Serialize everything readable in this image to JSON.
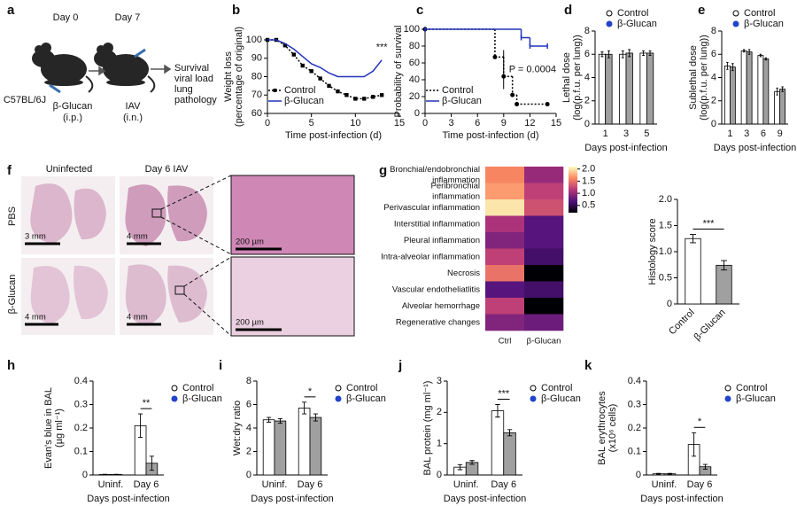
{
  "schematic": {
    "panel": "a",
    "timepoints": [
      "Day 0",
      "Day 7"
    ],
    "strain": "C57BL/6J",
    "treatment": [
      "β-Glucan",
      "(i.p.)"
    ],
    "infection": [
      "IAV",
      "(i.n.)"
    ],
    "readouts": [
      "Survival",
      "viral load",
      "lung",
      "pathology"
    ]
  },
  "histology": {
    "panel": "f",
    "columns": [
      "Uninfected",
      "Day 6 IAV"
    ],
    "rows": [
      "PBS",
      "β-Glucan"
    ],
    "scale_bars": [
      "3 mm",
      "4 mm",
      "4 mm",
      "4 mm"
    ],
    "zoom_scale_bars": [
      "200 µm",
      "200 µm"
    ]
  },
  "chart_data": [
    {
      "panel": "b",
      "type": "line",
      "xlabel": "Time post-infection (d)",
      "ylabel": [
        "Weight loss",
        "(percentage of original)"
      ],
      "x": [
        0,
        1,
        2,
        3,
        4,
        5,
        6,
        7,
        8,
        9,
        10,
        11,
        12,
        13
      ],
      "series": [
        {
          "name": "Control",
          "color": "#000000",
          "linestyle": "dotted",
          "marker": "square",
          "values": [
            100,
            100,
            97,
            92,
            86,
            83,
            79,
            75,
            72,
            70,
            68,
            68,
            69,
            70
          ]
        },
        {
          "name": "β-Glucan",
          "color": "#2233bb",
          "linestyle": "solid",
          "values": [
            100,
            100,
            98,
            95,
            91,
            87,
            85,
            82,
            80,
            80,
            80,
            80,
            83,
            89
          ]
        }
      ],
      "xlim": [
        0,
        15
      ],
      "xticks": [
        0,
        5,
        10,
        15
      ],
      "ylim": [
        60,
        100
      ],
      "yticks": [
        60,
        70,
        80,
        90,
        100
      ],
      "legend": "lower left",
      "annotation": "***"
    },
    {
      "panel": "c",
      "type": "line",
      "drawstyle": "steps-post",
      "xlabel": "Time post-infection (d)",
      "ylabel": [
        "Probability of survival"
      ],
      "series": [
        {
          "name": "Control",
          "color": "#000000",
          "linestyle": "dotted",
          "marker": "circle",
          "x": [
            0,
            8,
            9,
            10,
            10.5,
            14
          ],
          "values": [
            100,
            67,
            44,
            22,
            11,
            11
          ]
        },
        {
          "name": "β-Glucan",
          "color": "#2233bb",
          "linestyle": "solid",
          "marker": "tick",
          "x": [
            0,
            11,
            12,
            14
          ],
          "values": [
            100,
            90,
            80,
            80
          ]
        }
      ],
      "xlim": [
        0,
        15
      ],
      "xticks": [
        0,
        3,
        6,
        9,
        12,
        15
      ],
      "ylim": [
        0,
        100
      ],
      "yticks": [
        0,
        20,
        40,
        60,
        80,
        100
      ],
      "legend": "lower left",
      "annotation": "P = 0.0004"
    },
    {
      "panel": "d",
      "type": "bar",
      "xlabel": "Days post-infection",
      "ylabel": [
        "Lethal dose",
        "(log(p.f.u. per lung))"
      ],
      "categories": [
        "1",
        "3",
        "5"
      ],
      "series": [
        {
          "name": "Control",
          "color": "#ffffff",
          "point_color": "#ffffff",
          "values": [
            6.0,
            6.0,
            6.1
          ],
          "errors": [
            0.2,
            0.3,
            0.2
          ]
        },
        {
          "name": "β-Glucan",
          "color": "#a0a0a0",
          "point_color": "#2244cc",
          "values": [
            6.0,
            6.1,
            6.1
          ],
          "errors": [
            0.3,
            0.3,
            0.2
          ]
        }
      ],
      "ylim": [
        0,
        8
      ],
      "yticks": [
        0,
        2,
        4,
        6,
        8
      ],
      "legend": "above"
    },
    {
      "panel": "e",
      "type": "bar",
      "xlabel": "Days post-infection",
      "ylabel": [
        "Sublethal dose",
        "(log(p.f.u. per lung))"
      ],
      "categories": [
        "1",
        "3",
        "6",
        "9"
      ],
      "series": [
        {
          "name": "Control",
          "color": "#ffffff",
          "point_color": "#ffffff",
          "values": [
            5.0,
            6.3,
            5.9,
            2.8
          ],
          "errors": [
            0.3,
            0.1,
            0.1,
            0.3
          ]
        },
        {
          "name": "β-Glucan",
          "color": "#a0a0a0",
          "point_color": "#2244cc",
          "values": [
            4.9,
            6.2,
            5.6,
            3.0
          ],
          "errors": [
            0.3,
            0.2,
            0.1,
            0.2
          ]
        }
      ],
      "ylim": [
        0,
        8
      ],
      "yticks": [
        0,
        2,
        4,
        6,
        8
      ],
      "legend": "above"
    },
    {
      "panel": "g",
      "type": "heatmap",
      "colormap": "magma",
      "rows": [
        [
          "Bronchial/endobronchial",
          "inflammation"
        ],
        [
          "Peribronchial",
          "inflammation"
        ],
        [
          "Perivascular inflammation"
        ],
        [
          "Interstitial inflammation"
        ],
        [
          "Pleural inflammation"
        ],
        [
          "Intra-alveolar inflammation"
        ],
        [
          "Necrosis"
        ],
        [
          "Vascular endotheliatlitis"
        ],
        [
          "Alveolar hemorrhage"
        ],
        [
          "Regenerative changes"
        ]
      ],
      "columns": [
        "Ctrl",
        "β-Glucan"
      ],
      "values": [
        [
          1.6,
          1.0
        ],
        [
          1.7,
          1.2
        ],
        [
          2.0,
          1.3
        ],
        [
          1.1,
          0.7
        ],
        [
          0.9,
          0.7
        ],
        [
          1.2,
          0.6
        ],
        [
          1.5,
          0.2
        ],
        [
          0.7,
          0.6
        ],
        [
          1.2,
          0.2
        ],
        [
          0.9,
          0.8
        ]
      ],
      "zlim": [
        0.2,
        2.1
      ],
      "cticks": [
        {
          "value": 2,
          "label": "2.0"
        },
        1.5,
        {
          "value": 1,
          "label": "1.0"
        },
        0.5
      ]
    },
    {
      "type": "bar",
      "ylabel": [
        "Histology score"
      ],
      "categories": [
        "Control",
        "β-Glucan"
      ],
      "values": [
        1.25,
        0.74
      ],
      "errors": [
        0.08,
        0.09
      ],
      "colors": [
        "#ffffff",
        "#a0a0a0"
      ],
      "rotate_labels": 45,
      "ylim": [
        0,
        2
      ],
      "yticks": [
        0,
        0.5,
        {
          "value": 1,
          "label": "1.0"
        },
        1.5,
        {
          "value": 2,
          "label": "2.0"
        }
      ],
      "annotation": "***"
    },
    {
      "panel": "h",
      "type": "bar",
      "xlabel": "Days post-infection",
      "ylabel": [
        "Evan's blue in BAL",
        "(µg ml⁻¹)"
      ],
      "categories": [
        "Uninf.",
        "Day 6"
      ],
      "series": [
        {
          "name": "Control",
          "color": "#ffffff",
          "point_color": "#ffffff",
          "values": [
            0.002,
            0.21
          ],
          "errors": [
            0.001,
            0.05
          ]
        },
        {
          "name": "β-Glucan",
          "color": "#a0a0a0",
          "point_color": "#2244cc",
          "values": [
            0.002,
            0.05
          ],
          "errors": [
            0.001,
            0.03
          ]
        }
      ],
      "ylim": [
        0,
        0.4
      ],
      "yticks": [
        0,
        0.1,
        0.2,
        0.3,
        0.4
      ],
      "legend": "right",
      "annotation": "**"
    },
    {
      "panel": "i",
      "type": "bar",
      "xlabel": "Days post-infection",
      "ylabel": [
        "Wet:dry ratio"
      ],
      "categories": [
        "Uninf.",
        "Day 6"
      ],
      "series": [
        {
          "name": "Control",
          "color": "#ffffff",
          "point_color": "#ffffff",
          "values": [
            4.7,
            5.7
          ],
          "errors": [
            0.2,
            0.5
          ]
        },
        {
          "name": "β-Glucan",
          "color": "#a0a0a0",
          "point_color": "#2244cc",
          "values": [
            4.6,
            4.9
          ],
          "errors": [
            0.2,
            0.3
          ]
        }
      ],
      "ylim": [
        0,
        8
      ],
      "yticks": [
        0,
        2,
        4,
        6,
        8
      ],
      "legend": "right",
      "annotation": "*"
    },
    {
      "panel": "j",
      "type": "bar",
      "xlabel": "Days post-infection",
      "ylabel": [
        "BAL protein (mg ml⁻¹)"
      ],
      "categories": [
        "Uninf.",
        "Day 6"
      ],
      "series": [
        {
          "name": "Control",
          "color": "#ffffff",
          "point_color": "#ffffff",
          "values": [
            0.25,
            2.05
          ],
          "errors": [
            0.08,
            0.2
          ]
        },
        {
          "name": "β-Glucan",
          "color": "#a0a0a0",
          "point_color": "#2244cc",
          "values": [
            0.4,
            1.35
          ],
          "errors": [
            0.06,
            0.1
          ]
        }
      ],
      "ylim": [
        0,
        3
      ],
      "yticks": [
        0,
        1,
        2,
        3
      ],
      "legend": "right",
      "annotation": "***"
    },
    {
      "panel": "k",
      "type": "bar",
      "xlabel": "Days post-infection",
      "ylabel": [
        "BAL erythrocytes",
        "(x10⁶ cells)"
      ],
      "categories": [
        "Uninf.",
        "Day 6"
      ],
      "series": [
        {
          "name": "Control",
          "color": "#ffffff",
          "point_color": "#ffffff",
          "values": [
            0.005,
            0.13
          ],
          "errors": [
            0.002,
            0.05
          ]
        },
        {
          "name": "β-Glucan",
          "color": "#a0a0a0",
          "point_color": "#2244cc",
          "values": [
            0.005,
            0.035
          ],
          "errors": [
            0.002,
            0.01
          ]
        }
      ],
      "ylim": [
        0,
        0.4
      ],
      "yticks": [
        0,
        0.1,
        0.2,
        0.3,
        0.4
      ],
      "legend": "right",
      "annotation": "*"
    }
  ]
}
